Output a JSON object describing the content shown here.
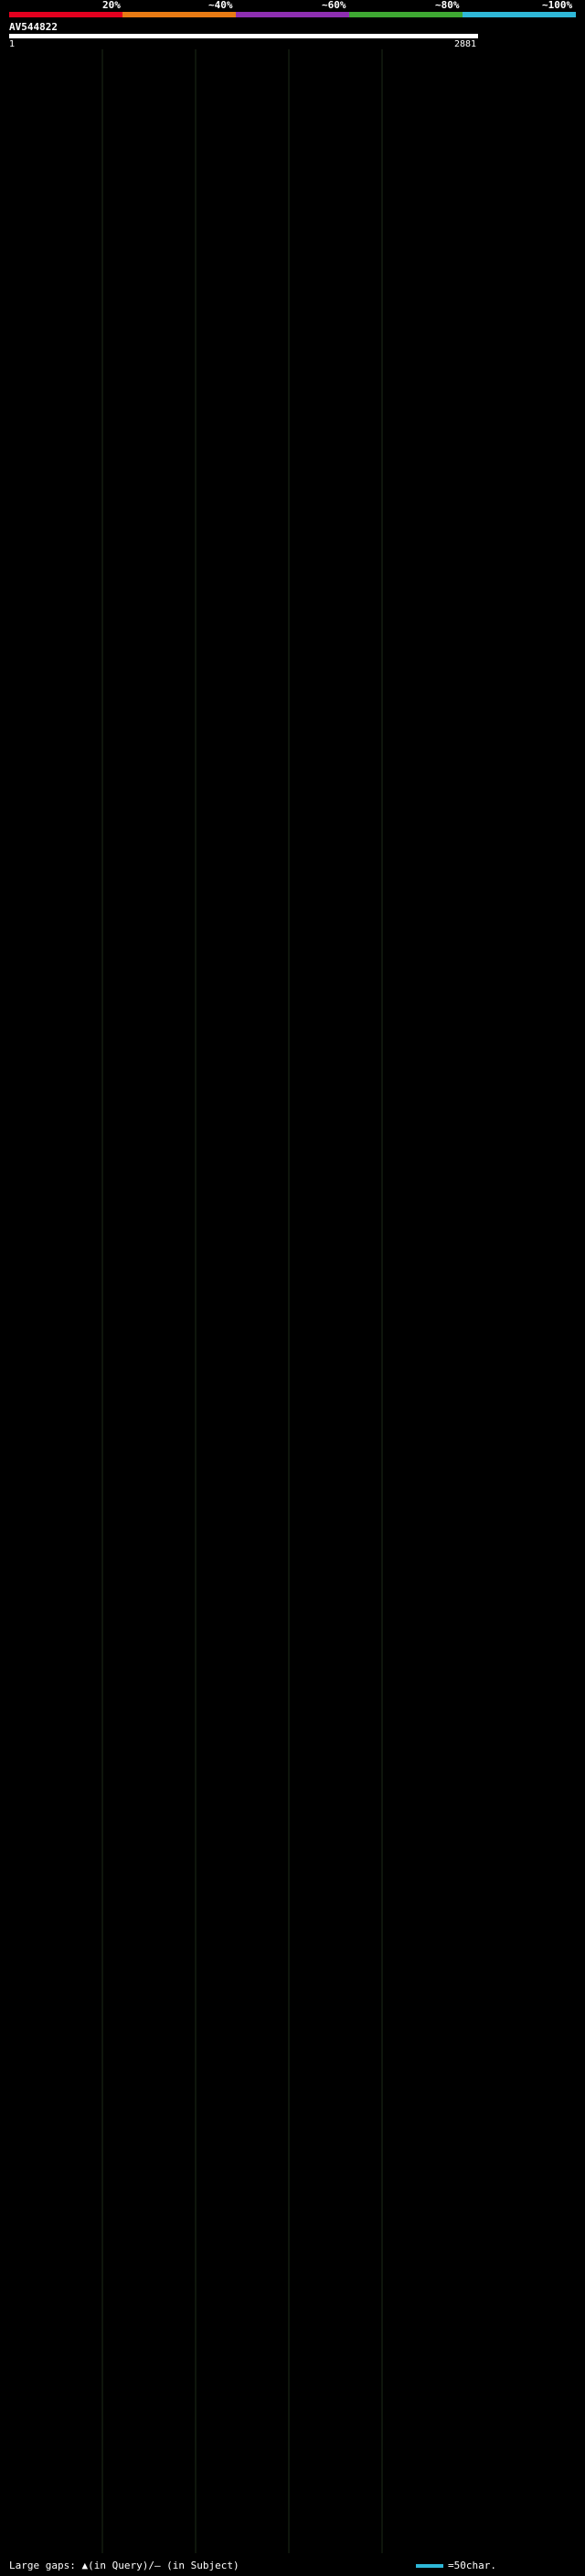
{
  "scale": {
    "labels": [
      "20%",
      "~40%",
      "~60%",
      "~80%",
      "~100%"
    ],
    "colors": [
      "#e4001f",
      "#e87b14",
      "#8e2fb1",
      "#3ea832",
      "#2fb8d8"
    ]
  },
  "query": {
    "name": "AV544822",
    "start": "1",
    "end": "2881"
  },
  "footer": {
    "gaps_text": "Large gaps: ▲(in Query)/– (in Subject)",
    "legend_text": "=50char."
  },
  "chart_data": {
    "type": "alignment_overview",
    "query_length": 2881,
    "x_range": [
      1,
      2881
    ],
    "colors": {
      "cyan": "#2fb8d8",
      "green": "#3ea832",
      "magenta": "#c42ad4"
    },
    "hits": []
  }
}
